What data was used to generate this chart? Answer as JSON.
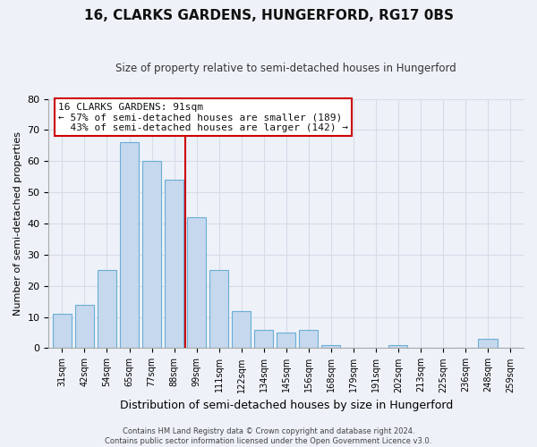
{
  "title": "16, CLARKS GARDENS, HUNGERFORD, RG17 0BS",
  "subtitle": "Size of property relative to semi-detached houses in Hungerford",
  "xlabel": "Distribution of semi-detached houses by size in Hungerford",
  "ylabel": "Number of semi-detached properties",
  "bar_labels": [
    "31sqm",
    "42sqm",
    "54sqm",
    "65sqm",
    "77sqm",
    "88sqm",
    "99sqm",
    "111sqm",
    "122sqm",
    "134sqm",
    "145sqm",
    "156sqm",
    "168sqm",
    "179sqm",
    "191sqm",
    "202sqm",
    "213sqm",
    "225sqm",
    "236sqm",
    "248sqm",
    "259sqm"
  ],
  "bar_values": [
    11,
    14,
    25,
    66,
    60,
    54,
    42,
    25,
    12,
    6,
    5,
    6,
    1,
    0,
    0,
    1,
    0,
    0,
    0,
    3,
    0
  ],
  "bar_color": "#c5d8ed",
  "bar_edge_color": "#6baed6",
  "reference_line_color": "#cc0000",
  "annotation_line1": "16 CLARKS GARDENS: 91sqm",
  "annotation_line2": "← 57% of semi-detached houses are smaller (189)",
  "annotation_line3": "  43% of semi-detached houses are larger (142) →",
  "annotation_box_color": "#ffffff",
  "annotation_box_edge": "#cc0000",
  "ylim": [
    0,
    80
  ],
  "yticks": [
    0,
    10,
    20,
    30,
    40,
    50,
    60,
    70,
    80
  ],
  "footer_line1": "Contains HM Land Registry data © Crown copyright and database right 2024.",
  "footer_line2": "Contains public sector information licensed under the Open Government Licence v3.0.",
  "grid_color": "#d5dce8",
  "background_color": "#eef2f8",
  "plot_bg_color": "#eef2f8"
}
